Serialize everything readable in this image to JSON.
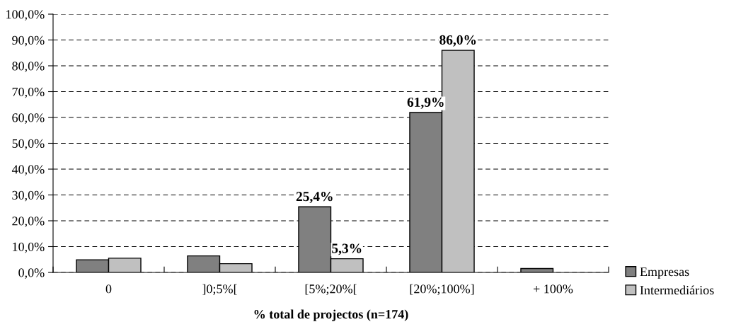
{
  "chart_data": {
    "type": "bar",
    "xlabel": "% total de projectos (n=174)",
    "categories": [
      "0",
      "]0;5%[",
      "[5%;20%[",
      "[20%;100%]",
      "+ 100%"
    ],
    "series": [
      {
        "name": "Empresas",
        "color": "#808080",
        "values": [
          4.9,
          6.4,
          25.4,
          61.9,
          1.5
        ],
        "value_labels": [
          null,
          null,
          "25,4%",
          "61,9%",
          null
        ]
      },
      {
        "name": "Intermediários",
        "color": "#c0c0c0",
        "values": [
          5.5,
          3.4,
          5.3,
          86.0,
          null
        ],
        "value_labels": [
          null,
          null,
          "5,3%",
          "86,0%",
          null
        ]
      }
    ],
    "ylim": [
      0,
      100
    ],
    "yticks": [
      {
        "value": 0,
        "label": "0,0%"
      },
      {
        "value": 10,
        "label": "10,0%"
      },
      {
        "value": 20,
        "label": "20,0%"
      },
      {
        "value": 30,
        "label": "30,0%"
      },
      {
        "value": 40,
        "label": "40,0%"
      },
      {
        "value": 50,
        "label": "50,0%"
      },
      {
        "value": 60,
        "label": "60,0%"
      },
      {
        "value": 70,
        "label": "70,0%"
      },
      {
        "value": 80,
        "label": "80,0%"
      },
      {
        "value": 90,
        "label": "90,0%"
      },
      {
        "value": 100,
        "label": "100,0%"
      }
    ],
    "grid": "y",
    "line_style": "dashed",
    "legend": "bottom right"
  }
}
